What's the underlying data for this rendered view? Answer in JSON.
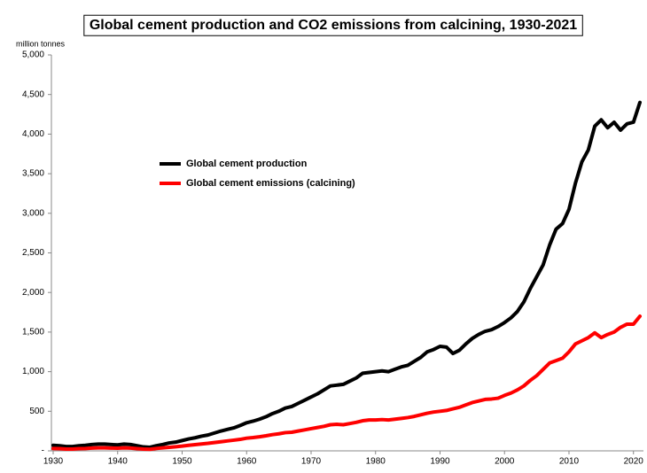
{
  "chart_data": {
    "type": "line",
    "title": "Global cement production and CO2 emissions from calcining, 1930-2021",
    "y_label": "million tonnes",
    "x": [
      1930,
      1931,
      1932,
      1933,
      1934,
      1935,
      1936,
      1937,
      1938,
      1939,
      1940,
      1941,
      1942,
      1943,
      1944,
      1945,
      1946,
      1947,
      1948,
      1949,
      1950,
      1951,
      1952,
      1953,
      1954,
      1955,
      1956,
      1957,
      1958,
      1959,
      1960,
      1961,
      1962,
      1963,
      1964,
      1965,
      1966,
      1967,
      1968,
      1969,
      1970,
      1971,
      1972,
      1973,
      1974,
      1975,
      1976,
      1977,
      1978,
      1979,
      1980,
      1981,
      1982,
      1983,
      1984,
      1985,
      1986,
      1987,
      1988,
      1989,
      1990,
      1991,
      1992,
      1993,
      1994,
      1995,
      1996,
      1997,
      1998,
      1999,
      2000,
      2001,
      2002,
      2003,
      2004,
      2005,
      2006,
      2007,
      2008,
      2009,
      2010,
      2011,
      2012,
      2013,
      2014,
      2015,
      2016,
      2017,
      2018,
      2019,
      2020,
      2021
    ],
    "series": [
      {
        "name": "Global cement production",
        "color": "#000000",
        "values": [
          70,
          65,
          55,
          55,
          65,
          70,
          80,
          85,
          85,
          80,
          75,
          85,
          80,
          65,
          50,
          45,
          65,
          80,
          100,
          110,
          130,
          150,
          165,
          185,
          200,
          225,
          250,
          270,
          290,
          320,
          355,
          375,
          400,
          430,
          470,
          500,
          540,
          560,
          600,
          640,
          680,
          720,
          770,
          820,
          830,
          840,
          880,
          920,
          980,
          990,
          1000,
          1010,
          1000,
          1030,
          1060,
          1080,
          1130,
          1180,
          1250,
          1280,
          1320,
          1310,
          1230,
          1270,
          1350,
          1420,
          1470,
          1510,
          1530,
          1570,
          1620,
          1680,
          1760,
          1880,
          2050,
          2200,
          2350,
          2600,
          2800,
          2870,
          3050,
          3380,
          3650,
          3800,
          4100,
          4180,
          4080,
          4150,
          4050,
          4130,
          4150,
          4400
        ]
      },
      {
        "name": "Global cement emissions (calcining)",
        "color": "#ff0000",
        "values": [
          30,
          28,
          22,
          22,
          28,
          30,
          35,
          38,
          38,
          35,
          33,
          38,
          35,
          28,
          22,
          20,
          30,
          38,
          45,
          52,
          60,
          70,
          78,
          87,
          95,
          105,
          115,
          125,
          135,
          145,
          160,
          168,
          178,
          190,
          205,
          215,
          230,
          235,
          250,
          265,
          280,
          295,
          310,
          330,
          335,
          330,
          345,
          360,
          380,
          390,
          390,
          395,
          390,
          400,
          410,
          420,
          435,
          455,
          475,
          490,
          500,
          510,
          530,
          550,
          580,
          610,
          630,
          650,
          655,
          665,
          700,
          730,
          770,
          820,
          890,
          950,
          1030,
          1110,
          1140,
          1170,
          1250,
          1350,
          1390,
          1430,
          1490,
          1430,
          1470,
          1500,
          1560,
          1600,
          1600,
          1700
        ]
      }
    ],
    "xlim": [
      1930,
      2021
    ],
    "xticks": [
      1930,
      1940,
      1950,
      1960,
      1970,
      1980,
      1990,
      2000,
      2010,
      2020
    ],
    "ylim": [
      0,
      5000
    ],
    "yticks": [
      {
        "value": 0,
        "label": "-"
      },
      500,
      {
        "value": 1000,
        "label": "1,000"
      },
      {
        "value": 1500,
        "label": "1,500"
      },
      {
        "value": 2000,
        "label": "2,000"
      },
      {
        "value": 2500,
        "label": "2,500"
      },
      {
        "value": 3000,
        "label": "3,000"
      },
      {
        "value": 3500,
        "label": "3,500"
      },
      {
        "value": 4000,
        "label": "4,000"
      },
      {
        "value": 4500,
        "label": "4,500"
      },
      {
        "value": 5000,
        "label": "5,000"
      }
    ],
    "grid": false,
    "legend": "center-left"
  }
}
